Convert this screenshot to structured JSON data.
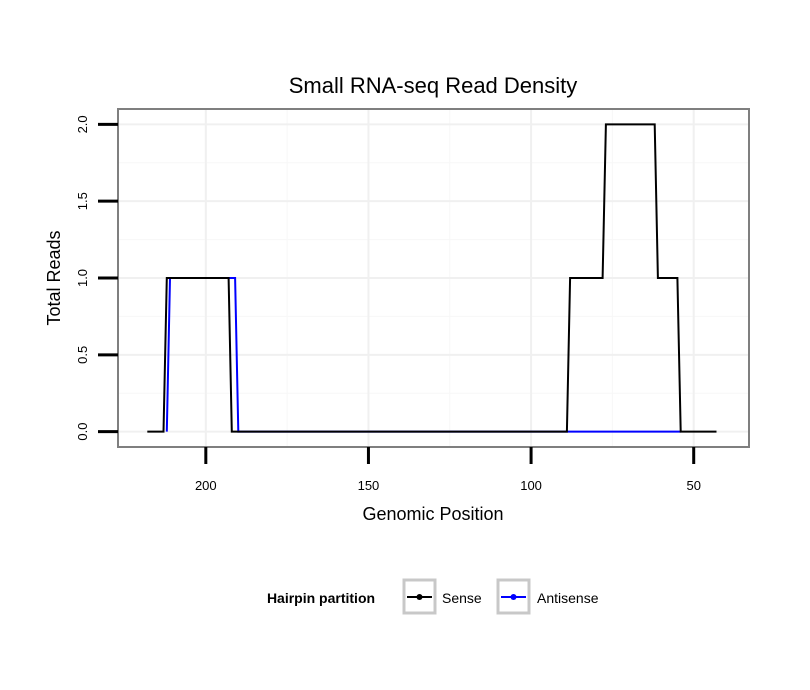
{
  "chart_data": {
    "type": "line",
    "title": "Small RNA-seq Read Density",
    "xlabel": "Genomic Position",
    "ylabel": "Total Reads",
    "x_reversed": true,
    "xlim": [
      227,
      33
    ],
    "ylim": [
      -0.1,
      2.1
    ],
    "x_ticks": [
      200,
      150,
      100,
      50
    ],
    "x_tick_labels": [
      "200",
      "150",
      "100",
      "50"
    ],
    "y_ticks": [
      0,
      0.5,
      1,
      1.5,
      2
    ],
    "y_tick_labels": [
      "0.0",
      "0.5",
      "1.0",
      "1.5",
      "2.0"
    ],
    "grid": true,
    "legend_position": "bottom",
    "legend_title": "Hairpin partition",
    "series": [
      {
        "name": "Sense",
        "color": "#000000",
        "x": [
          218,
          213,
          212,
          193,
          192,
          89,
          88,
          78,
          77,
          62,
          61,
          55,
          54,
          43
        ],
        "y": [
          0,
          0,
          1,
          1,
          0,
          0,
          1,
          1,
          2,
          2,
          1,
          1,
          0,
          0
        ]
      },
      {
        "name": "Antisense",
        "color": "#0000ff",
        "x": [
          212,
          211,
          191,
          190,
          54
        ],
        "y": [
          0,
          1,
          1,
          0,
          0
        ]
      }
    ]
  }
}
